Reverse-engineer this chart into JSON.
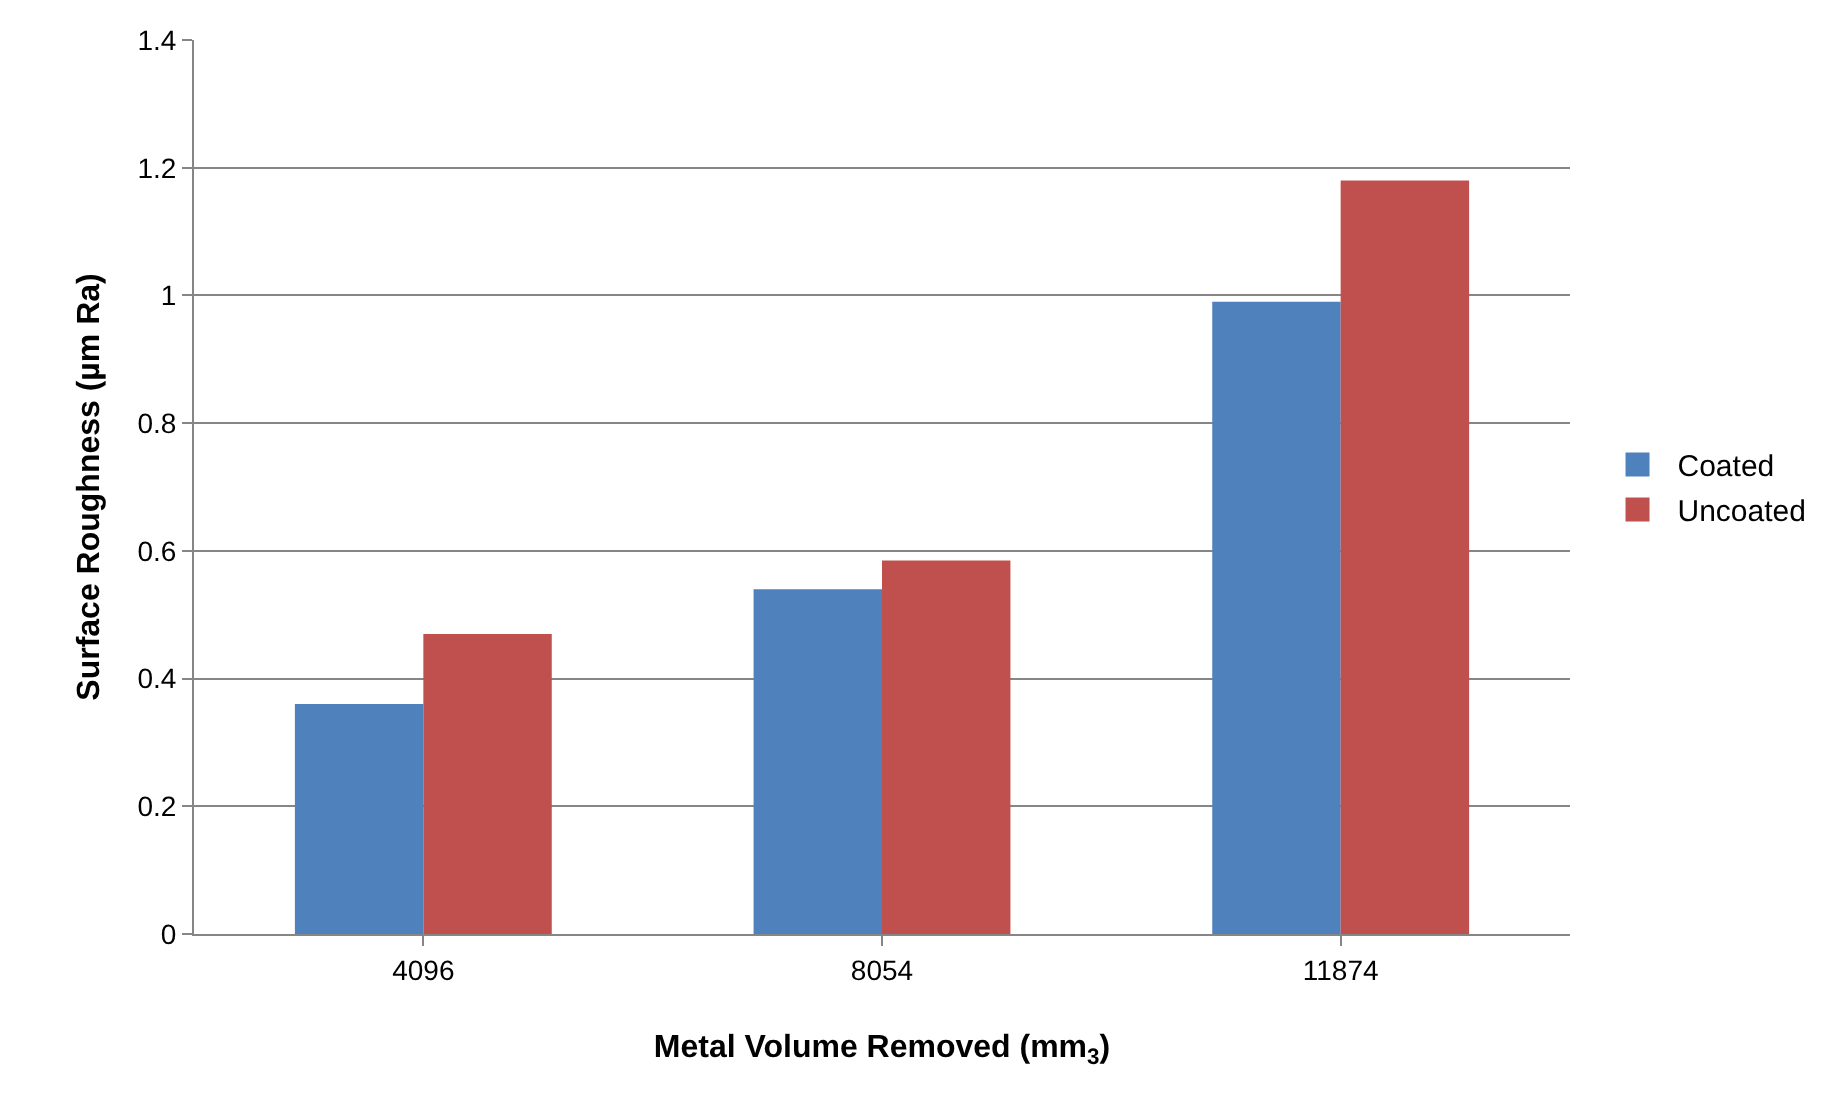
{
  "chart_data": {
    "type": "bar",
    "xlabel": "Metal Volume Removed (mm$_{3}$)",
    "ylabel": "Surface Roughness (µm Ra)",
    "categories": [
      "4096",
      "8054",
      "11874"
    ],
    "series": [
      {
        "name": "Coated",
        "color": "#4f81bd",
        "values": [
          0.36,
          0.54,
          0.99
        ]
      },
      {
        "name": "Uncoated",
        "color": "#c0504d",
        "values": [
          0.47,
          0.585,
          1.18
        ]
      }
    ],
    "ylim": [
      0,
      1.4
    ],
    "yticks": [
      0,
      0.2,
      0.4,
      0.6,
      0.8,
      1,
      1.2,
      1.4
    ],
    "grid": "y",
    "legend": "right"
  }
}
